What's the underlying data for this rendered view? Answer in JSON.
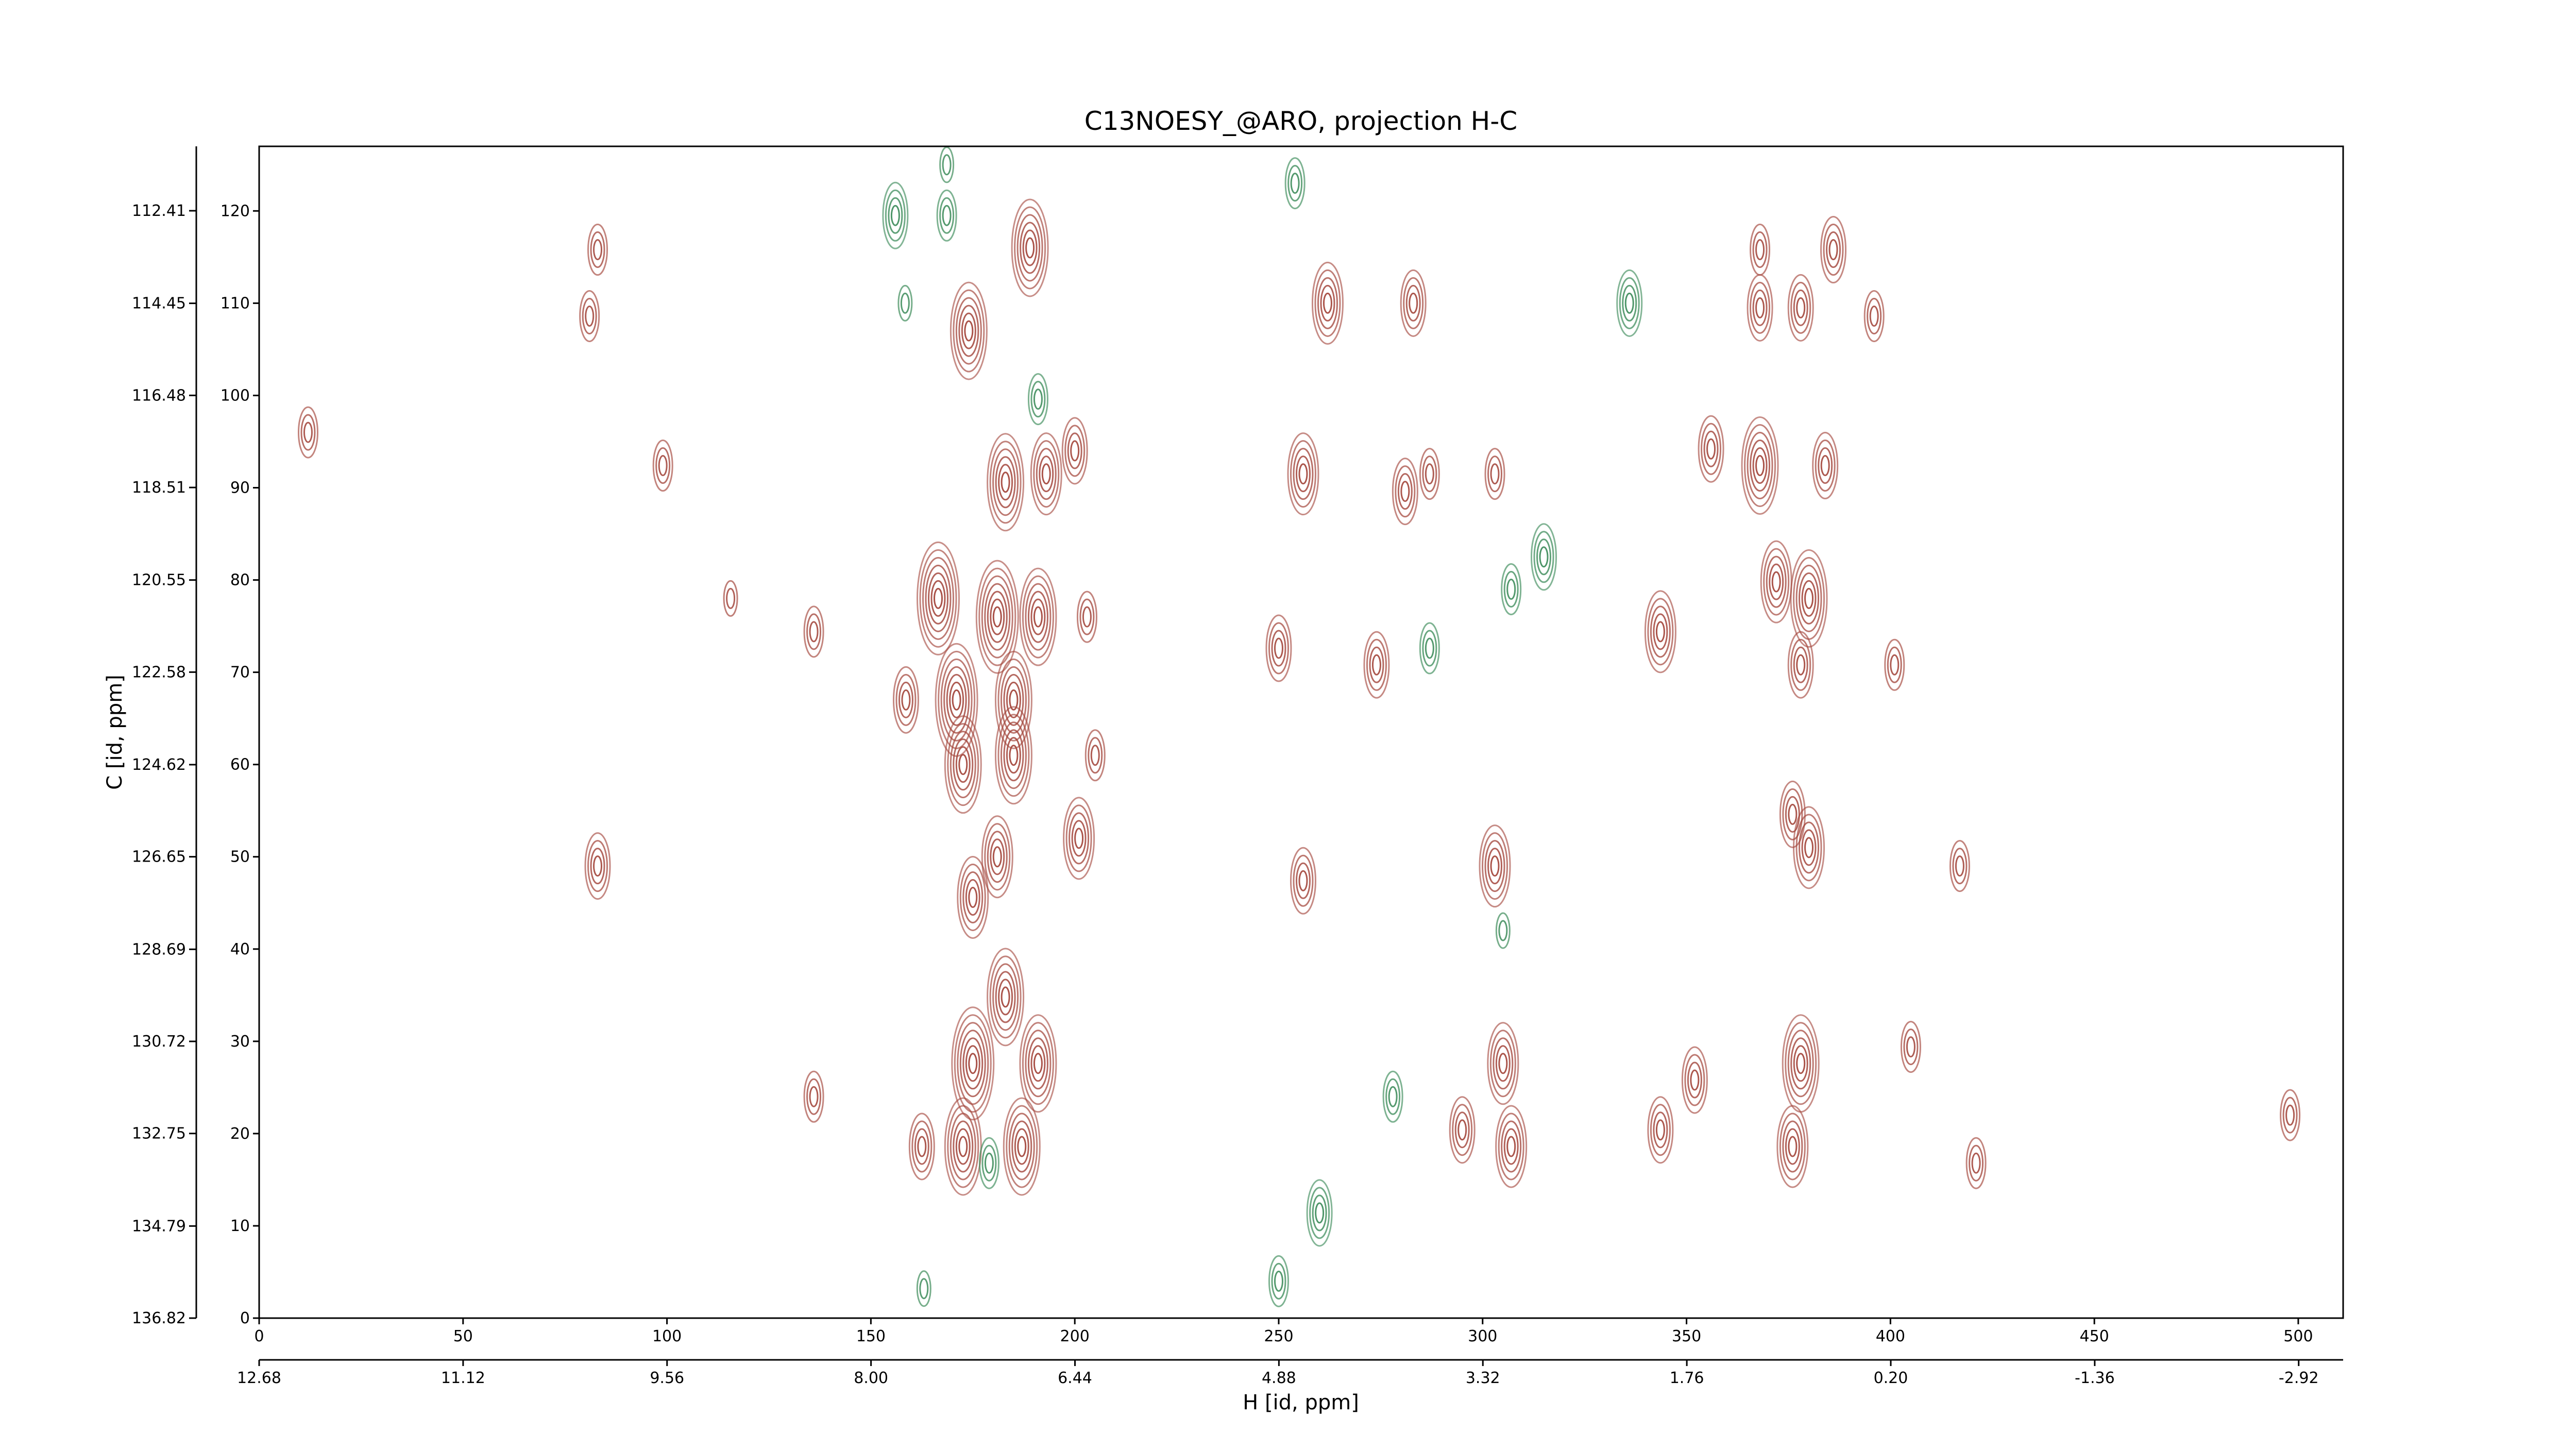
{
  "chart_data": {
    "type": "contour",
    "title": "C13NOESY_@ARO, projection H-C",
    "x_label": "H [id, ppm]",
    "y_label": "C [id, ppm]",
    "xlim": [
      0,
      511
    ],
    "xticks": [
      0,
      50,
      100,
      150,
      200,
      250,
      300,
      350,
      400,
      450,
      500
    ],
    "ylim": [
      0,
      127
    ],
    "yticks": [
      0,
      10,
      20,
      30,
      40,
      50,
      60,
      70,
      80,
      90,
      100,
      110,
      120
    ],
    "x2lim": [
      12.68,
      -3.26
    ],
    "x2ticks": [
      12.68,
      11.12,
      9.56,
      {
        "value": 8,
        "label": "8.00"
      },
      6.44,
      4.88,
      3.32,
      1.76,
      {
        "value": 0.2,
        "label": "0.20"
      },
      -1.36,
      -2.92
    ],
    "y2lim": [
      136.82,
      110.99
    ],
    "y2ticks": [
      112.41,
      114.45,
      116.48,
      118.51,
      120.55,
      122.58,
      124.62,
      126.65,
      128.69,
      130.72,
      132.75,
      134.79,
      136.82
    ],
    "series": [
      {
        "color": "#a4473d",
        "x": [
          174,
          189,
          183,
          193,
          200,
          166.5,
          181,
          191,
          171,
          185,
          172.6,
          185,
          181,
          201,
          175,
          183,
          175,
          191,
          172.6,
          187,
          162.5,
          205,
          256,
          250,
          256,
          262,
          283,
          281,
          274,
          303,
          305,
          307,
          295,
          343.6,
          368,
          372,
          380,
          378,
          376,
          380,
          378,
          376,
          352,
          343.6,
          356,
          384,
          303,
          287,
          368,
          378,
          386,
          368,
          396,
          417,
          405,
          83,
          83,
          81,
          203,
          115.6,
          136,
          136,
          401,
          421,
          498,
          12,
          99,
          158.6
        ],
        "y": [
          107,
          116,
          90.6,
          91.5,
          94,
          78,
          76,
          76,
          67,
          67,
          60,
          61,
          50,
          52,
          45.6,
          34.8,
          27.6,
          27.6,
          18.6,
          18.6,
          18.6,
          61,
          91.5,
          72.6,
          47.4,
          110,
          110,
          89.6,
          70.8,
          49,
          27.6,
          18.6,
          20.4,
          74.4,
          92.4,
          79.8,
          78,
          70.8,
          54.6,
          51,
          27.6,
          18.6,
          25.8,
          20.4,
          94.2,
          92.4,
          91.5,
          91.5,
          109.5,
          109.5,
          115.8,
          115.8,
          108.6,
          49,
          29.4,
          115.8,
          49,
          108.6,
          76,
          78,
          74.4,
          24,
          70.8,
          16.8,
          22,
          96,
          92.4,
          67
        ],
        "levels": [
          6,
          6,
          6,
          5,
          4,
          7,
          7,
          6,
          7,
          6,
          6,
          6,
          5,
          5,
          5,
          6,
          7,
          6,
          6,
          6,
          4,
          3,
          5,
          4,
          4,
          5,
          4,
          4,
          4,
          5,
          5,
          5,
          4,
          5,
          6,
          5,
          6,
          4,
          4,
          5,
          6,
          5,
          4,
          4,
          4,
          4,
          3,
          3,
          4,
          4,
          4,
          3,
          3,
          3,
          3,
          3,
          4,
          3,
          3,
          2,
          3,
          3,
          3,
          3,
          3,
          3,
          3,
          4
        ]
      },
      {
        "color": "#3d8c5a",
        "x": [
          156,
          168.6,
          158.4,
          254,
          191,
          315,
          307,
          287,
          336,
          260,
          250,
          278,
          179,
          163,
          305,
          168.6
        ],
        "y": [
          119.5,
          119.5,
          110,
          123,
          99.6,
          82.5,
          79,
          72.6,
          110,
          11.4,
          4,
          24,
          16.8,
          3.2,
          42,
          125
        ],
        "levels": [
          4,
          3,
          2,
          3,
          3,
          4,
          3,
          3,
          4,
          4,
          3,
          3,
          3,
          2,
          2,
          2
        ]
      }
    ]
  }
}
